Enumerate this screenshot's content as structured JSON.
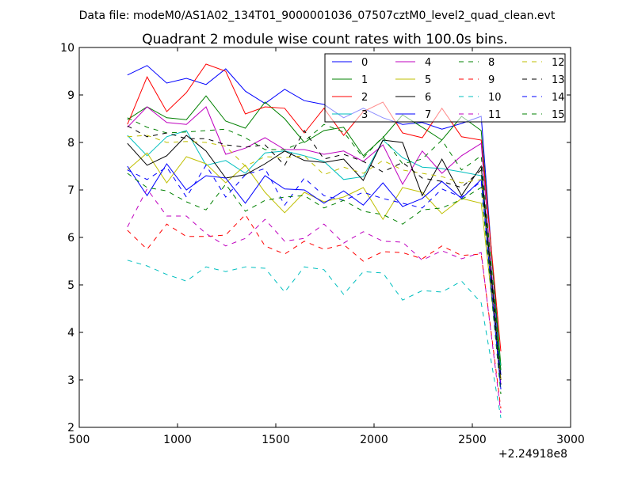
{
  "chart_data": {
    "type": "line",
    "suptitle": "Data file: modeM0/AS1A02_134T01_9000001036_07507cztM0_level2_quad_clean.evt",
    "title": "Quadrant 2 module wise count rates with 100.0s bins.",
    "xlabel": "",
    "ylabel": "",
    "x_offset_label": "+2.24918e8",
    "xlim": [
      500,
      3000
    ],
    "ylim": [
      2,
      10
    ],
    "xticks": [
      500,
      1000,
      1500,
      2000,
      2500,
      3000
    ],
    "yticks": [
      2,
      3,
      4,
      5,
      6,
      7,
      8,
      9,
      10
    ],
    "grid": false,
    "legend_position": "top-right",
    "legend_columns": 4,
    "x": [
      745,
      845,
      945,
      1045,
      1145,
      1245,
      1345,
      1445,
      1545,
      1645,
      1745,
      1845,
      1945,
      2045,
      2145,
      2245,
      2345,
      2445,
      2545,
      2645
    ],
    "series": [
      {
        "name": "0",
        "color": "#0000ff",
        "dash": "solid",
        "values": [
          9.42,
          9.62,
          9.25,
          9.35,
          9.22,
          9.55,
          9.08,
          8.82,
          9.12,
          8.88,
          8.8,
          8.52,
          8.72,
          8.52,
          8.38,
          8.42,
          8.28,
          8.4,
          8.55,
          3.1
        ]
      },
      {
        "name": "1",
        "color": "#008000",
        "dash": "solid",
        "values": [
          8.48,
          8.75,
          8.52,
          8.48,
          8.98,
          8.45,
          8.3,
          8.85,
          8.5,
          8.0,
          8.25,
          8.32,
          7.72,
          8.1,
          8.58,
          8.32,
          8.05,
          8.55,
          8.25,
          3.3
        ]
      },
      {
        "name": "2",
        "color": "#ff0000",
        "dash": "solid",
        "values": [
          8.38,
          9.38,
          8.65,
          9.05,
          9.65,
          9.5,
          8.6,
          8.75,
          8.72,
          8.2,
          8.72,
          8.15,
          8.65,
          8.85,
          8.2,
          8.1,
          8.72,
          8.12,
          8.05,
          3.6
        ]
      },
      {
        "name": "3",
        "color": "#00bfbf",
        "dash": "solid",
        "values": [
          8.15,
          7.72,
          8.12,
          8.25,
          7.52,
          7.62,
          7.35,
          7.78,
          7.82,
          7.72,
          7.6,
          7.22,
          7.28,
          8.05,
          7.68,
          7.48,
          7.45,
          7.38,
          7.3,
          3.2
        ]
      },
      {
        "name": "4",
        "color": "#bf00bf",
        "dash": "solid",
        "values": [
          8.32,
          8.75,
          8.42,
          8.38,
          8.75,
          7.75,
          7.88,
          8.1,
          7.85,
          7.85,
          7.75,
          7.82,
          7.6,
          7.95,
          7.12,
          7.82,
          7.35,
          7.72,
          7.98,
          2.9
        ]
      },
      {
        "name": "5",
        "color": "#bfbf00",
        "dash": "solid",
        "values": [
          7.42,
          7.78,
          7.15,
          7.7,
          7.55,
          7.15,
          7.52,
          6.95,
          6.52,
          6.95,
          6.75,
          6.85,
          7.05,
          6.38,
          7.05,
          6.95,
          6.5,
          6.82,
          6.72,
          3.0
        ]
      },
      {
        "name": "6",
        "color": "#000000",
        "dash": "solid",
        "values": [
          7.98,
          7.52,
          7.72,
          8.15,
          7.82,
          7.25,
          7.32,
          7.55,
          7.82,
          7.62,
          7.58,
          7.65,
          7.2,
          8.05,
          8.0,
          6.88,
          7.65,
          6.88,
          7.5,
          3.0
        ]
      },
      {
        "name": "7",
        "color": "#0000ff",
        "dash": "solid",
        "values": [
          7.5,
          6.88,
          7.55,
          7.0,
          7.3,
          7.25,
          6.72,
          7.3,
          7.02,
          7.0,
          6.72,
          6.98,
          6.68,
          7.15,
          6.65,
          6.82,
          7.18,
          6.82,
          7.22,
          2.8
        ]
      },
      {
        "name": "8",
        "color": "#008000",
        "dash": "dashed",
        "values": [
          8.52,
          8.32,
          8.2,
          8.22,
          8.25,
          8.28,
          8.1,
          7.85,
          7.85,
          8.02,
          8.38,
          8.22,
          7.68,
          8.12,
          7.55,
          7.65,
          8.05,
          7.42,
          7.72,
          3.2
        ]
      },
      {
        "name": "9",
        "color": "#ff0000",
        "dash": "dashed",
        "values": [
          6.15,
          5.75,
          6.28,
          6.02,
          6.02,
          6.05,
          6.48,
          5.82,
          5.65,
          5.92,
          5.75,
          5.85,
          5.5,
          5.7,
          5.68,
          5.55,
          5.82,
          5.62,
          5.65,
          2.4
        ]
      },
      {
        "name": "10",
        "color": "#00bfbf",
        "dash": "dashed",
        "values": [
          5.52,
          5.4,
          5.22,
          5.08,
          5.38,
          5.28,
          5.38,
          5.35,
          4.85,
          5.38,
          5.32,
          4.8,
          5.28,
          5.25,
          4.68,
          4.88,
          4.85,
          5.08,
          4.62,
          2.2
        ]
      },
      {
        "name": "11",
        "color": "#bf00bf",
        "dash": "dashed",
        "values": [
          6.22,
          7.02,
          6.45,
          6.45,
          6.08,
          5.82,
          5.98,
          6.38,
          5.92,
          5.98,
          6.28,
          5.88,
          6.12,
          5.92,
          5.9,
          5.52,
          5.72,
          5.55,
          5.68,
          2.3
        ]
      },
      {
        "name": "12",
        "color": "#bfbf00",
        "dash": "dashed",
        "values": [
          8.12,
          8.15,
          8.0,
          8.02,
          8.0,
          7.92,
          7.5,
          7.7,
          7.68,
          7.72,
          7.32,
          7.48,
          7.35,
          7.62,
          7.42,
          7.35,
          7.28,
          7.15,
          7.22,
          3.0
        ]
      },
      {
        "name": "13",
        "color": "#000000",
        "dash": "dashed",
        "values": [
          8.35,
          8.12,
          8.2,
          8.08,
          8.08,
          7.95,
          7.9,
          7.95,
          7.52,
          8.25,
          7.65,
          7.75,
          7.6,
          7.38,
          7.58,
          7.25,
          7.18,
          7.05,
          7.42,
          2.9
        ]
      },
      {
        "name": "14",
        "color": "#0000ff",
        "dash": "dashed",
        "values": [
          7.42,
          7.22,
          7.48,
          6.85,
          7.52,
          6.85,
          7.32,
          7.45,
          6.68,
          7.25,
          6.88,
          6.78,
          6.95,
          6.82,
          6.72,
          6.62,
          7.02,
          6.85,
          7.18,
          2.8
        ]
      },
      {
        "name": "15",
        "color": "#008000",
        "dash": "dashed",
        "values": [
          7.35,
          7.05,
          6.98,
          6.75,
          6.58,
          7.12,
          6.55,
          6.78,
          6.85,
          6.88,
          6.62,
          6.78,
          6.55,
          6.48,
          6.28,
          6.58,
          6.62,
          6.8,
          7.05,
          2.7
        ]
      }
    ]
  }
}
